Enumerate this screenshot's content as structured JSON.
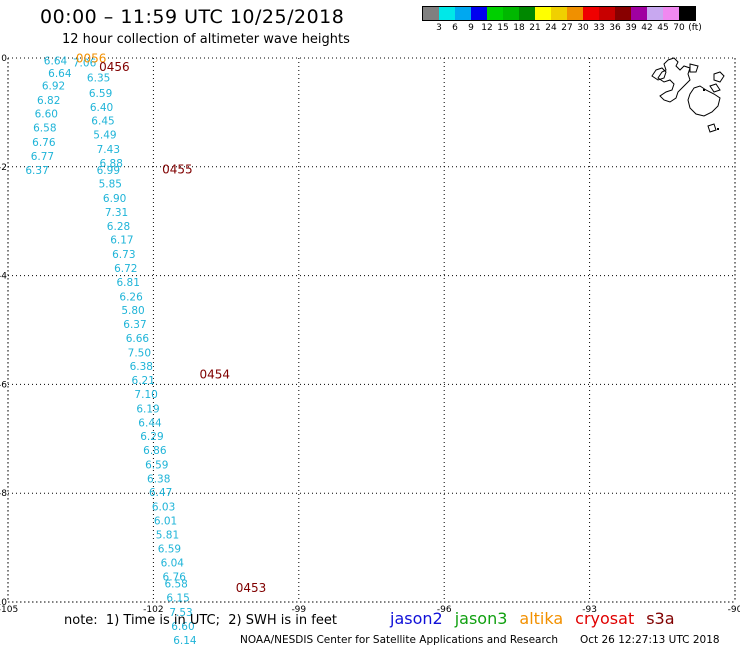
{
  "header": {
    "title": "00:00 – 11:59 UTC 10/25/2018",
    "subtitle": "12 hour collection of altimeter wave heights"
  },
  "legend": {
    "unit": "(ft)",
    "colors": [
      "#808080",
      "#00e8e8",
      "#00a8f0",
      "#0000f0",
      "#00d000",
      "#00b800",
      "#008800",
      "#ffff00",
      "#f0d000",
      "#f09000",
      "#f00000",
      "#c80000",
      "#880000",
      "#a000a0",
      "#c8a8f0",
      "#f088f0",
      "#000000"
    ],
    "labels": [
      "3",
      "6",
      "9",
      "12",
      "15",
      "18",
      "21",
      "24",
      "27",
      "30",
      "33",
      "36",
      "39",
      "42",
      "45",
      "70"
    ]
  },
  "map": {
    "lon_ticks": [
      "-105",
      "-102",
      "-99",
      "-96",
      "-93",
      "-90"
    ],
    "lat_ticks": [
      "0",
      "-2",
      "-4",
      "-6",
      "-8",
      "-10"
    ],
    "grid": true,
    "projection_extent": {
      "lon": [
        -105,
        -90
      ],
      "lat": [
        -10,
        0
      ]
    }
  },
  "chart_data": {
    "type": "scatter",
    "title": "00:00 – 11:59 UTC 10/25/2018",
    "subtitle": "12 hour collection of altimeter wave heights",
    "xlabel": "",
    "ylabel": "",
    "xlim": [
      -105,
      -90
    ],
    "ylim": [
      -10,
      0
    ],
    "swh_color": "#1fb4d8",
    "points": [
      {
        "lon": -104.02,
        "lat": -0.05,
        "v": "6.64"
      },
      {
        "lon": -103.93,
        "lat": -0.28,
        "v": "6.64"
      },
      {
        "lon": -103.42,
        "lat": -0.08,
        "v": "7.06"
      },
      {
        "lon": -103.13,
        "lat": -0.36,
        "v": "6.35"
      },
      {
        "lon": -104.06,
        "lat": -0.51,
        "v": "6.92"
      },
      {
        "lon": -103.09,
        "lat": -0.64,
        "v": "6.59"
      },
      {
        "lon": -104.16,
        "lat": -0.77,
        "v": "6.82"
      },
      {
        "lon": -103.07,
        "lat": -0.9,
        "v": "6.40"
      },
      {
        "lon": -104.21,
        "lat": -1.02,
        "v": "6.60"
      },
      {
        "lon": -103.04,
        "lat": -1.15,
        "v": "6.45"
      },
      {
        "lon": -104.24,
        "lat": -1.28,
        "v": "6.58"
      },
      {
        "lon": -103.0,
        "lat": -1.41,
        "v": "5.49"
      },
      {
        "lon": -104.26,
        "lat": -1.54,
        "v": "6.76"
      },
      {
        "lon": -102.93,
        "lat": -1.67,
        "v": "7.43"
      },
      {
        "lon": -104.29,
        "lat": -1.8,
        "v": "6.77"
      },
      {
        "lon": -102.87,
        "lat": -1.93,
        "v": "6.88"
      },
      {
        "lon": -104.4,
        "lat": -2.06,
        "v": "6.37"
      },
      {
        "lon": -102.93,
        "lat": -2.06,
        "v": "6.99"
      },
      {
        "lon": -102.89,
        "lat": -2.31,
        "v": "5.85"
      },
      {
        "lon": -102.8,
        "lat": -2.57,
        "v": "6.90"
      },
      {
        "lon": -102.76,
        "lat": -2.83,
        "v": "7.31"
      },
      {
        "lon": -102.72,
        "lat": -3.09,
        "v": "6.28"
      },
      {
        "lon": -102.65,
        "lat": -3.34,
        "v": "6.17"
      },
      {
        "lon": -102.61,
        "lat": -3.6,
        "v": "6.73"
      },
      {
        "lon": -102.57,
        "lat": -3.86,
        "v": "6.72"
      },
      {
        "lon": -102.52,
        "lat": -4.12,
        "v": "6.81"
      },
      {
        "lon": -102.46,
        "lat": -4.38,
        "v": "6.26"
      },
      {
        "lon": -102.42,
        "lat": -4.63,
        "v": "5.80"
      },
      {
        "lon": -102.38,
        "lat": -4.89,
        "v": "6.37"
      },
      {
        "lon": -102.33,
        "lat": -5.15,
        "v": "6.66"
      },
      {
        "lon": -102.29,
        "lat": -5.41,
        "v": "7.50"
      },
      {
        "lon": -102.25,
        "lat": -5.66,
        "v": "6.38"
      },
      {
        "lon": -102.21,
        "lat": -5.92,
        "v": "6.21"
      },
      {
        "lon": -102.15,
        "lat": -6.18,
        "v": "7.10"
      },
      {
        "lon": -102.11,
        "lat": -6.44,
        "v": "6.19"
      },
      {
        "lon": -102.07,
        "lat": -6.7,
        "v": "6.44"
      },
      {
        "lon": -102.03,
        "lat": -6.95,
        "v": "6.29"
      },
      {
        "lon": -101.97,
        "lat": -7.21,
        "v": "6.86"
      },
      {
        "lon": -101.93,
        "lat": -7.47,
        "v": "6.59"
      },
      {
        "lon": -101.89,
        "lat": -7.73,
        "v": "6.38"
      },
      {
        "lon": -101.85,
        "lat": -7.98,
        "v": "6.47"
      },
      {
        "lon": -101.79,
        "lat": -8.24,
        "v": "6.03"
      },
      {
        "lon": -101.75,
        "lat": -8.5,
        "v": "6.01"
      },
      {
        "lon": -101.71,
        "lat": -8.76,
        "v": "5.81"
      },
      {
        "lon": -101.67,
        "lat": -9.02,
        "v": "6.59"
      },
      {
        "lon": -101.61,
        "lat": -9.27,
        "v": "6.04"
      },
      {
        "lon": -101.57,
        "lat": -9.53,
        "v": "6.76"
      },
      {
        "lon": -101.53,
        "lat": -9.66,
        "v": "6.58"
      },
      {
        "lon": -101.49,
        "lat": -9.92,
        "v": "6.15"
      },
      {
        "lon": -101.43,
        "lat": -10.18,
        "v": "7.53"
      },
      {
        "lon": -101.39,
        "lat": -10.44,
        "v": "6.60"
      },
      {
        "lon": -101.35,
        "lat": -10.7,
        "v": "6.14"
      }
    ],
    "time_labels": [
      {
        "lon": -103.6,
        "lat": -0.01,
        "text": "0056",
        "color": "#f29000"
      },
      {
        "lon": -103.12,
        "lat": -0.17,
        "text": "0456",
        "color": "#800000"
      },
      {
        "lon": -101.82,
        "lat": -2.05,
        "text": "0455",
        "color": "#800000"
      },
      {
        "lon": -101.05,
        "lat": -5.82,
        "text": "0454",
        "color": "#800000"
      },
      {
        "lon": -100.3,
        "lat": -9.74,
        "text": "0453",
        "color": "#800000"
      }
    ]
  },
  "footer": {
    "note": "note:  1) Time is in UTC;  2) SWH is in feet",
    "satellites": [
      {
        "name": "jason2",
        "color": "#1010d8"
      },
      {
        "name": "jason3",
        "color": "#10a010"
      },
      {
        "name": "altika",
        "color": "#f29000"
      },
      {
        "name": "cryosat",
        "color": "#e00000"
      },
      {
        "name": "s3a",
        "color": "#800000"
      }
    ],
    "credit": "NOAA/NESDIS Center for Satellite Applications and Research",
    "timestamp": "Oct 26 12:27:13 UTC 2018"
  }
}
